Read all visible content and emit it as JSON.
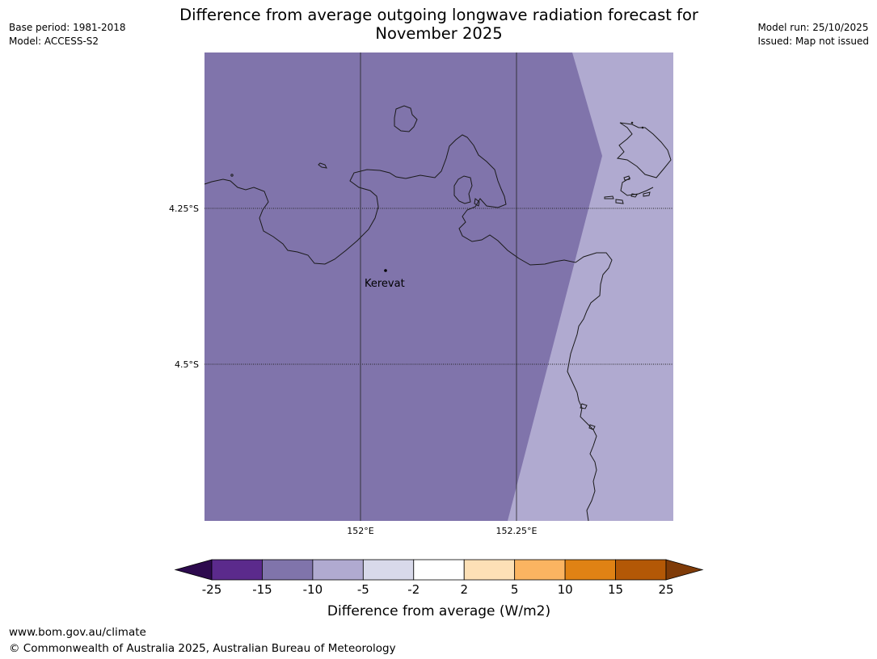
{
  "header": {
    "title_line1": "Difference from average outgoing longwave radiation forecast for",
    "title_line2": "November 2025",
    "base_period": "Base period: 1981-2018",
    "model": "Model: ACCESS-S2",
    "model_run": "Model run: 25/10/2025",
    "issued": "Issued: Map not issued"
  },
  "map": {
    "lat_labels": [
      "4.25°S",
      "4.5°S"
    ],
    "lon_labels": [
      "152°E",
      "152.25°E"
    ],
    "place_label": "Kerevat",
    "colors": {
      "dark_fill": "#8074ab",
      "light_fill": "#b0aad0",
      "coastline": "#1a1a1a",
      "gridline": "#222222"
    }
  },
  "colorbar": {
    "label": "Difference from average (W/m2)",
    "ticks": [
      "-25",
      "-15",
      "-10",
      "-5",
      "-2",
      "2",
      "5",
      "10",
      "15",
      "25"
    ],
    "colors": {
      "under": "#2d0a4e",
      "bins": [
        "#5b2a8c",
        "#8074ab",
        "#b0aad0",
        "#d8d9ea",
        "#ffffff",
        "#fde0b6",
        "#fbb461",
        "#e08214",
        "#b35806"
      ],
      "over": "#7f3b08"
    }
  },
  "footer": {
    "url": "www.bom.gov.au/climate",
    "copyright": "© Commonwealth of Australia 2025, Australian Bureau of Meteorology"
  }
}
